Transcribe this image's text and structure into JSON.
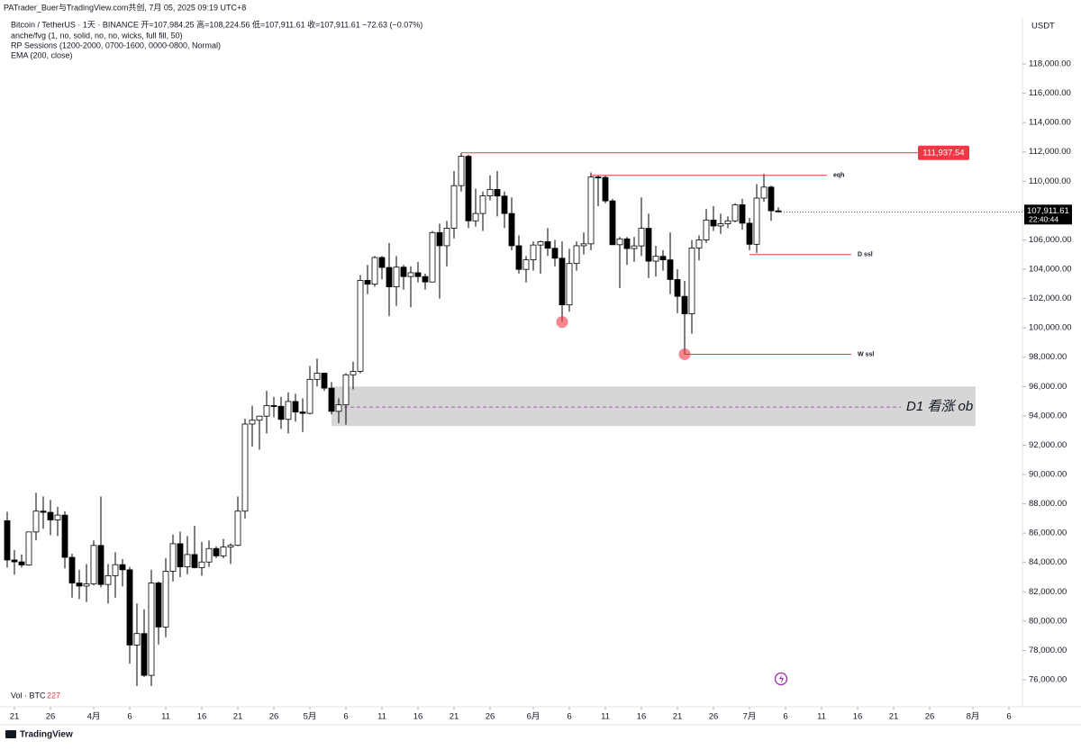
{
  "chart_data": {
    "type": "candlestick",
    "credit": "PATrader_Buer与TradingView.com共创, 7月 05, 2025 09:19 UTC+8",
    "title": "Bitcoin / TetherUS · 1天 · BINANCE  开=107,984.25  高=108,224.56  低=107,911.61  收=107,911.61  −72.63 (−0.07%)",
    "indicators": [
      "anche/fvg (1, no, solid, no, no, wicks, full fill, 50)",
      "RP Sessions (1200-2000, 0700-1600, 0000-0800, Normal)",
      "EMA (200, close)"
    ],
    "currency": "USDT",
    "volume_label": "Vol · BTC",
    "volume_value": "227",
    "brand": "TradingView",
    "x": [
      "2025-03-20",
      "2025-03-21",
      "2025-03-22",
      "2025-03-23",
      "2025-03-24",
      "2025-03-25",
      "2025-03-26",
      "2025-03-27",
      "2025-03-28",
      "2025-03-29",
      "2025-03-30",
      "2025-03-31",
      "2025-04-01",
      "2025-04-02",
      "2025-04-03",
      "2025-04-04",
      "2025-04-05",
      "2025-04-06",
      "2025-04-07",
      "2025-04-08",
      "2025-04-09",
      "2025-04-10",
      "2025-04-11",
      "2025-04-12",
      "2025-04-13",
      "2025-04-14",
      "2025-04-15",
      "2025-04-16",
      "2025-04-17",
      "2025-04-18",
      "2025-04-19",
      "2025-04-20",
      "2025-04-21",
      "2025-04-22",
      "2025-04-23",
      "2025-04-24",
      "2025-04-25",
      "2025-04-26",
      "2025-04-27",
      "2025-04-28",
      "2025-04-29",
      "2025-04-30",
      "2025-05-01",
      "2025-05-02",
      "2025-05-03",
      "2025-05-04",
      "2025-05-05",
      "2025-05-06",
      "2025-05-07",
      "2025-05-08",
      "2025-05-09",
      "2025-05-10",
      "2025-05-11",
      "2025-05-12",
      "2025-05-13",
      "2025-05-14",
      "2025-05-15",
      "2025-05-16",
      "2025-05-17",
      "2025-05-18",
      "2025-05-19",
      "2025-05-20",
      "2025-05-21",
      "2025-05-22",
      "2025-05-23",
      "2025-05-24",
      "2025-05-25",
      "2025-05-26",
      "2025-05-27",
      "2025-05-28",
      "2025-05-29",
      "2025-05-30",
      "2025-05-31",
      "2025-06-01",
      "2025-06-02",
      "2025-06-03",
      "2025-06-04",
      "2025-06-05",
      "2025-06-06",
      "2025-06-07",
      "2025-06-08",
      "2025-06-09",
      "2025-06-10",
      "2025-06-11",
      "2025-06-12",
      "2025-06-13",
      "2025-06-14",
      "2025-06-15",
      "2025-06-16",
      "2025-06-17",
      "2025-06-18",
      "2025-06-19",
      "2025-06-20",
      "2025-06-21",
      "2025-06-22",
      "2025-06-23",
      "2025-06-24",
      "2025-06-25",
      "2025-06-26",
      "2025-06-27",
      "2025-06-28",
      "2025-06-29",
      "2025-06-30",
      "2025-07-01",
      "2025-07-02",
      "2025-07-03",
      "2025-07-04",
      "2025-07-05"
    ],
    "open": [
      86850,
      84170,
      84040,
      83830,
      86080,
      87500,
      87420,
      86900,
      87230,
      84350,
      82600,
      82390,
      82540,
      85160,
      82500,
      83100,
      83850,
      83500,
      78370,
      79150,
      76300,
      82600,
      79600,
      83400,
      85280,
      83700,
      84540,
      83650,
      84030,
      84950,
      84450,
      85050,
      85170,
      87500,
      93440,
      93700,
      93980,
      94700,
      94650,
      93760,
      94980,
      94260,
      94170,
      96490,
      96910,
      95890,
      94310,
      94750,
      96800,
      97030,
      103240,
      102980,
      104800,
      104120,
      102800,
      104140,
      103500,
      103760,
      103500,
      103130,
      106500,
      105600,
      106800,
      109700,
      111700,
      107300,
      107800,
      109000,
      109440,
      108990,
      107800,
      105600,
      103990,
      104640,
      105650,
      105880,
      105430,
      104750,
      101570,
      104390,
      105600,
      105730,
      110290,
      110260,
      108660,
      105670,
      106070,
      105410,
      105590,
      106790,
      104550,
      104880,
      104640,
      103300,
      102150,
      100960,
      105450,
      106000,
      107350,
      106950,
      107100,
      107300,
      108400,
      107140,
      105700,
      108850,
      109600,
      107984.25
    ],
    "high": [
      87450,
      84850,
      84550,
      86100,
      88760,
      88500,
      88270,
      87800,
      87500,
      84600,
      83500,
      83900,
      85500,
      88500,
      83900,
      84700,
      84230,
      83700,
      81200,
      80800,
      83500,
      82700,
      84300,
      85900,
      86100,
      85800,
      86500,
      85400,
      85500,
      85100,
      85600,
      85300,
      88500,
      93800,
      94700,
      94000,
      95700,
      95300,
      95300,
      95600,
      95500,
      95200,
      97400,
      97900,
      96950,
      96300,
      95200,
      96900,
      97700,
      103600,
      104300,
      104900,
      104900,
      105800,
      104900,
      104300,
      104200,
      104500,
      103700,
      106600,
      107100,
      107300,
      110700,
      111937.54,
      111800,
      109500,
      109300,
      110400,
      110700,
      109300,
      108900,
      106300,
      104900,
      105900,
      105950,
      106800,
      106000,
      105900,
      105400,
      105900,
      106500,
      110600,
      110400,
      110400,
      108800,
      106200,
      106200,
      106200,
      108900,
      107800,
      105600,
      105300,
      106500,
      104000,
      103200,
      106000,
      106300,
      108100,
      108300,
      107800,
      107600,
      108500,
      108800,
      107500,
      109800,
      110500,
      109700,
      108224.56
    ],
    "low": [
      83650,
      83180,
      83650,
      83780,
      85500,
      86300,
      85860,
      85800,
      83600,
      81600,
      81500,
      81300,
      82430,
      82300,
      81200,
      81600,
      82370,
      77100,
      74400,
      76200,
      74600,
      78400,
      78900,
      82700,
      83000,
      83200,
      83600,
      83100,
      83700,
      84300,
      84300,
      83900,
      85100,
      87000,
      91900,
      91700,
      92800,
      93900,
      93100,
      92800,
      93600,
      92900,
      94100,
      96000,
      95700,
      94100,
      93500,
      93400,
      95800,
      96900,
      102300,
      102800,
      103300,
      100800,
      101500,
      102600,
      101400,
      103100,
      102600,
      103100,
      102000,
      104200,
      106100,
      109300,
      106800,
      106900,
      106600,
      108700,
      107600,
      106800,
      105300,
      103700,
      103100,
      103900,
      103700,
      104900,
      104200,
      100400,
      101100,
      103900,
      105000,
      105300,
      108300,
      108500,
      105700,
      102700,
      104300,
      104500,
      104900,
      103400,
      103500,
      103900,
      102300,
      101000,
      98200,
      99600,
      104600,
      105800,
      106600,
      106400,
      106800,
      107200,
      106700,
      105300,
      105100,
      108600,
      107300,
      107911.61
    ],
    "close": [
      84170,
      84040,
      83830,
      86080,
      87500,
      87420,
      86900,
      87230,
      84350,
      82600,
      82390,
      82540,
      85160,
      82500,
      83100,
      83850,
      83500,
      78370,
      79150,
      76300,
      82600,
      79600,
      83400,
      85280,
      83700,
      84540,
      83650,
      84030,
      84950,
      84450,
      85050,
      85170,
      87500,
      93440,
      93700,
      93980,
      94700,
      94650,
      93760,
      94980,
      94260,
      94170,
      96490,
      96910,
      95890,
      94310,
      94750,
      96800,
      97030,
      103240,
      102980,
      104800,
      104120,
      102800,
      104140,
      103500,
      103760,
      103500,
      103130,
      106500,
      105600,
      106800,
      109700,
      111700,
      107300,
      107800,
      109000,
      109440,
      108990,
      107800,
      105600,
      103990,
      104640,
      105650,
      105880,
      105430,
      104750,
      101570,
      104390,
      105600,
      105730,
      110290,
      110260,
      108660,
      105670,
      106070,
      105410,
      105590,
      106790,
      104550,
      104880,
      104640,
      103300,
      102150,
      100960,
      105450,
      106000,
      107350,
      106950,
      107100,
      107300,
      108400,
      107140,
      105700,
      108850,
      109600,
      107984.25,
      107911.61
    ],
    "up_color": "#ffffff",
    "down_color": "#000000",
    "level_color": "#f23645",
    "xlim": [
      "2025-03-19",
      "2025-08-08"
    ],
    "xticks": [
      {
        "value": "2025-03-21",
        "label": "21"
      },
      {
        "value": "2025-03-26",
        "label": "26"
      },
      {
        "value": "2025-04-01",
        "label": "4月"
      },
      {
        "value": "2025-04-06",
        "label": "6"
      },
      {
        "value": "2025-04-11",
        "label": "11"
      },
      {
        "value": "2025-04-16",
        "label": "16"
      },
      {
        "value": "2025-04-21",
        "label": "21"
      },
      {
        "value": "2025-04-26",
        "label": "26"
      },
      {
        "value": "2025-05-01",
        "label": "5月"
      },
      {
        "value": "2025-05-06",
        "label": "6"
      },
      {
        "value": "2025-05-11",
        "label": "11"
      },
      {
        "value": "2025-05-16",
        "label": "16"
      },
      {
        "value": "2025-05-21",
        "label": "21"
      },
      {
        "value": "2025-05-26",
        "label": "26"
      },
      {
        "value": "2025-06-01",
        "label": "6月"
      },
      {
        "value": "2025-06-06",
        "label": "6"
      },
      {
        "value": "2025-06-11",
        "label": "11"
      },
      {
        "value": "2025-06-16",
        "label": "16"
      },
      {
        "value": "2025-06-21",
        "label": "21"
      },
      {
        "value": "2025-06-26",
        "label": "26"
      },
      {
        "value": "2025-07-01",
        "label": "7月"
      },
      {
        "value": "2025-07-06",
        "label": "6"
      },
      {
        "value": "2025-07-11",
        "label": "11"
      },
      {
        "value": "2025-07-16",
        "label": "16"
      },
      {
        "value": "2025-07-21",
        "label": "21"
      },
      {
        "value": "2025-07-26",
        "label": "26"
      },
      {
        "value": "2025-08-01",
        "label": "8月"
      },
      {
        "value": "2025-08-06",
        "label": "6"
      }
    ],
    "ylim": [
      75570,
      121010
    ],
    "yticks": [
      {
        "value": 76000,
        "label": "76,000.00"
      },
      {
        "value": 78000,
        "label": "78,000.00"
      },
      {
        "value": 80000,
        "label": "80,000.00"
      },
      {
        "value": 82000,
        "label": "82,000.00"
      },
      {
        "value": 84000,
        "label": "84,000.00"
      },
      {
        "value": 86000,
        "label": "86,000.00"
      },
      {
        "value": 88000,
        "label": "88,000.00"
      },
      {
        "value": 90000,
        "label": "90,000.00"
      },
      {
        "value": 92000,
        "label": "92,000.00"
      },
      {
        "value": 94000,
        "label": "94,000.00"
      },
      {
        "value": 96000,
        "label": "96,000.00"
      },
      {
        "value": 98000,
        "label": "98,000.00"
      },
      {
        "value": 100000,
        "label": "100,000.00"
      },
      {
        "value": 102000,
        "label": "102,000.00"
      },
      {
        "value": 104000,
        "label": "104,000.00"
      },
      {
        "value": 106000,
        "label": "106,000.00"
      },
      {
        "value": 108000,
        "label": "108,000.00"
      },
      {
        "value": 110000,
        "label": "110,000.00"
      },
      {
        "value": 112000,
        "label": "112,000.00"
      },
      {
        "value": 114000,
        "label": "114,000.00"
      },
      {
        "value": 116000,
        "label": "116,000.00"
      },
      {
        "value": 118000,
        "label": "118,000.00"
      }
    ],
    "high_level": {
      "value": 111937.54,
      "label": "111,937.54",
      "start": "2025-05-22"
    },
    "levels": [
      {
        "label": "eqh",
        "value": 110400,
        "start": "2025-06-09"
      },
      {
        "label": "D ssl",
        "value": 105000,
        "start": "2025-07-01"
      },
      {
        "label": "W ssl",
        "value": 98200,
        "start": "2025-06-22"
      }
    ],
    "markers": [
      "2025-06-05",
      "2025-06-22"
    ],
    "zone": {
      "label": "D1 看涨 ob",
      "low": 93300,
      "high": 96000,
      "mid": 94600,
      "start": "2025-05-04"
    },
    "last_price": {
      "value": 107911.61,
      "label": "107,911.61",
      "countdown": "22:40:44"
    }
  }
}
